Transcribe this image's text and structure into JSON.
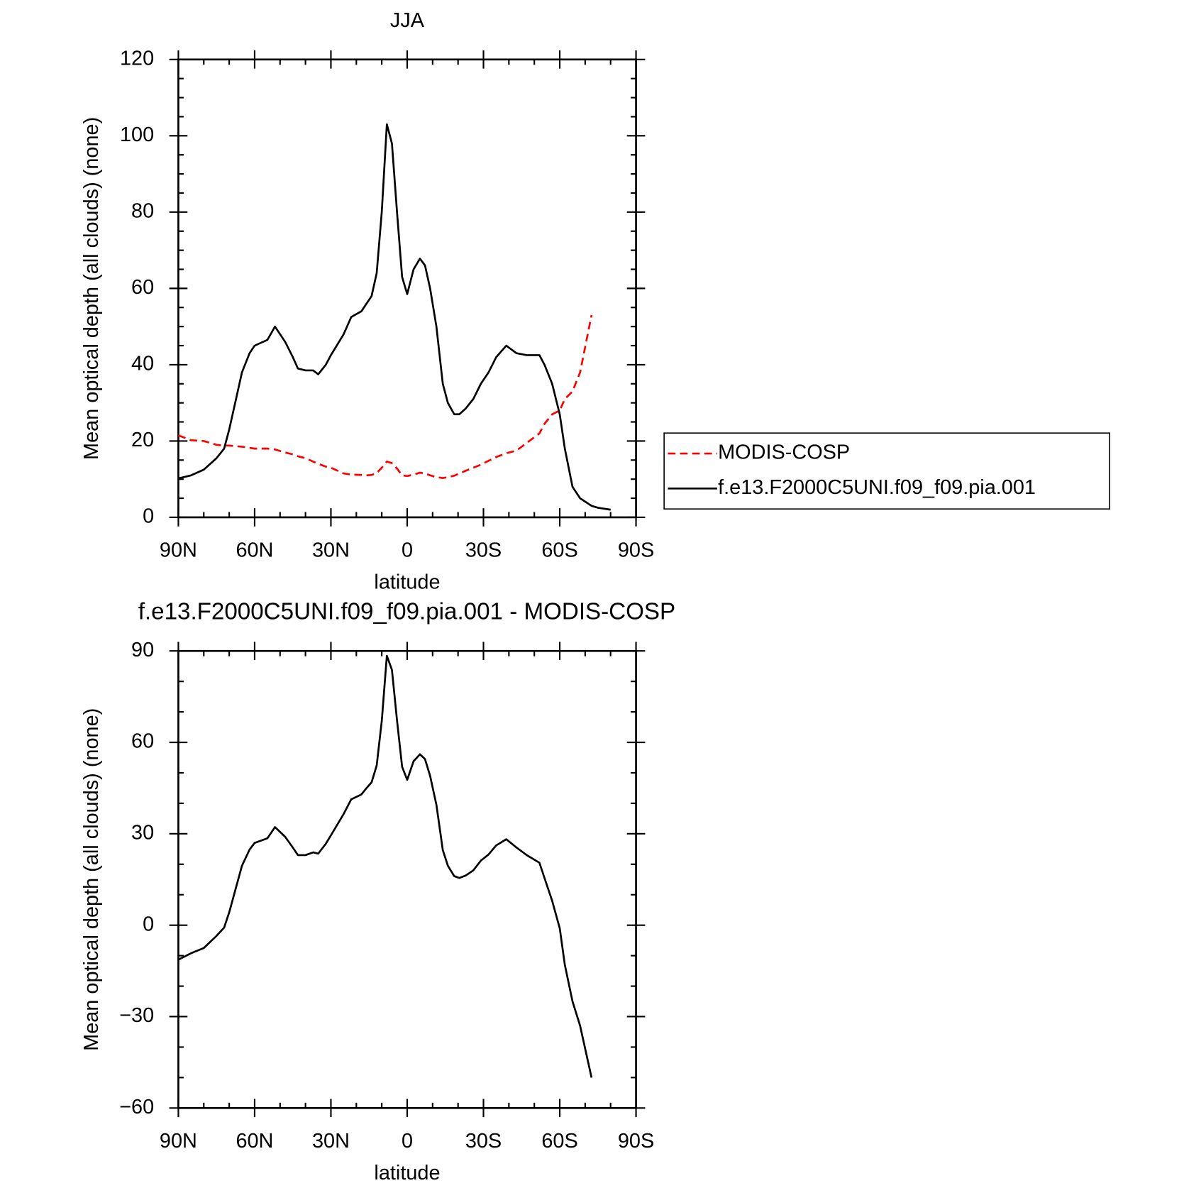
{
  "chart_data": [
    {
      "type": "line",
      "title": "JJA",
      "xlabel": "latitude",
      "ylabel": "Mean optical depth (all clouds) (none)",
      "x": [
        90,
        85,
        80,
        75,
        72,
        70,
        67,
        65,
        62,
        60,
        55,
        52,
        48,
        45,
        43,
        40,
        37,
        35,
        32,
        30,
        25,
        22,
        18,
        16,
        14,
        12,
        10,
        8,
        6,
        4,
        2,
        0,
        -2.5,
        -5,
        -7,
        -9,
        -11.5,
        -14,
        -16,
        -18.5,
        -20.5,
        -23,
        -26,
        -29,
        -32,
        -35,
        -39,
        -43,
        -47,
        -52,
        -54,
        -57,
        -60,
        -62,
        -65,
        -68,
        -72.5,
        -75,
        -80
      ],
      "series": [
        {
          "name": "MODIS-COSP",
          "color": "#ff0000",
          "style": "dashed",
          "values": [
            21.5,
            20.2,
            20,
            19,
            18.8,
            18.8,
            18.6,
            18.5,
            18.2,
            18,
            18,
            17.8,
            17,
            16.5,
            16,
            15.5,
            14.6,
            14,
            13.3,
            13,
            11.5,
            11.2,
            11.1,
            11,
            11.1,
            11.6,
            13,
            14.6,
            14.2,
            12.8,
            11,
            10.8,
            11.2,
            11.7,
            11.5,
            11,
            10.5,
            10.3,
            10.5,
            10.9,
            11.5,
            12.2,
            13,
            13.8,
            14.8,
            15.8,
            16.8,
            17.5,
            19.5,
            22,
            24.5,
            27,
            28,
            31,
            33,
            38,
            53,
            null,
            null
          ]
        },
        {
          "name": "f.e13.F2000C5UNI.f09_f09.pia.001",
          "color": "#000000",
          "style": "solid",
          "values": [
            10.2,
            11,
            12.5,
            15.5,
            18,
            23,
            32,
            38,
            43,
            45,
            46.5,
            50,
            46,
            42,
            39,
            38.5,
            38.5,
            37.5,
            40,
            42.5,
            48,
            52.5,
            54,
            56,
            58,
            64,
            80,
            103,
            98,
            80,
            63,
            58.5,
            65,
            67.8,
            66,
            60,
            50,
            35,
            30,
            27,
            27,
            28.5,
            31,
            35,
            38,
            42,
            45,
            43,
            42.5,
            42.5,
            40,
            35,
            27,
            18,
            8,
            5,
            3,
            2.5,
            2
          ]
        }
      ],
      "xlim": [
        90,
        -90
      ],
      "xticks": [
        {
          "value": 90,
          "label": "90N"
        },
        {
          "value": 60,
          "label": "60N"
        },
        {
          "value": 30,
          "label": "30N"
        },
        0,
        {
          "value": -30,
          "label": "30S"
        },
        {
          "value": -60,
          "label": "60S"
        },
        {
          "value": -90,
          "label": "90S"
        }
      ],
      "ylim": [
        0,
        120
      ],
      "yticks": [
        0,
        20,
        40,
        60,
        80,
        100,
        120
      ],
      "legend": "right"
    },
    {
      "type": "line",
      "title": "f.e13.F2000C5UNI.f09_f09.pia.001 - MODIS-COSP",
      "xlabel": "latitude",
      "ylabel": "Mean optical depth (all clouds) (none)",
      "x": [
        90,
        85,
        80,
        75,
        72,
        70,
        67,
        65,
        62,
        60,
        55,
        52,
        48,
        45,
        43,
        40,
        37,
        35,
        32,
        30,
        25,
        22,
        18,
        16,
        14,
        12,
        10,
        8,
        6,
        4,
        2,
        0,
        -2.5,
        -5,
        -7,
        -9,
        -11.5,
        -14,
        -16,
        -18.5,
        -20.5,
        -23,
        -26,
        -29,
        -32,
        -35,
        -39,
        -43,
        -47,
        -52,
        -54,
        -57,
        -60,
        -62,
        -65,
        -68,
        -72.5
      ],
      "series": [
        {
          "color": "#000000",
          "style": "solid",
          "values": [
            -11.3,
            -9.2,
            -7.5,
            -3.5,
            -0.8,
            4.2,
            13.4,
            19.5,
            24.8,
            27,
            28.5,
            32.2,
            29,
            25.5,
            23,
            23,
            23.9,
            23.5,
            26.7,
            29.5,
            36.5,
            41.3,
            42.9,
            45,
            46.9,
            52.4,
            67,
            88.4,
            83.8,
            67.2,
            52,
            47.7,
            53.8,
            56.1,
            54.5,
            49,
            39.5,
            24.7,
            19.5,
            16.1,
            15.5,
            16.3,
            18,
            21.2,
            23.2,
            26.2,
            28.2,
            25.5,
            23,
            20.5,
            15.5,
            8,
            -1,
            -13,
            -25,
            -33,
            -50
          ]
        }
      ],
      "xlim": [
        90,
        -90
      ],
      "xticks": [
        {
          "value": 90,
          "label": "90N"
        },
        {
          "value": 60,
          "label": "60N"
        },
        {
          "value": 30,
          "label": "30N"
        },
        0,
        {
          "value": -30,
          "label": "30S"
        },
        {
          "value": -60,
          "label": "60S"
        },
        {
          "value": -90,
          "label": "90S"
        }
      ],
      "ylim": [
        -60,
        90
      ],
      "yticks": [
        {
          "value": -60,
          "label": "−60"
        },
        {
          "value": -30,
          "label": "−30"
        },
        0,
        30,
        60,
        90
      ]
    }
  ]
}
